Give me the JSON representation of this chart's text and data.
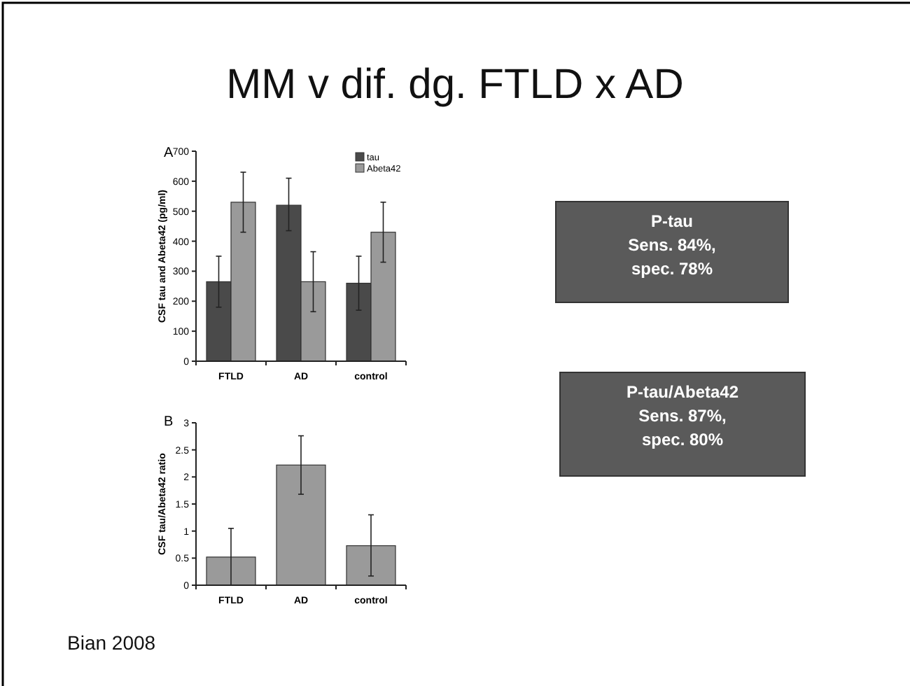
{
  "chart_data": [
    {
      "type": "bar",
      "title": "MM v dif. dg. FTLD x AD",
      "ylabel": "CSF tau and Abeta42 (pg/ml)",
      "categories": [
        "FTLD",
        "AD",
        "control"
      ],
      "series": [
        {
          "name": "tau",
          "color": "#4a4a4a",
          "values": [
            265,
            520,
            260
          ],
          "errors": [
            [
              180,
              350
            ],
            [
              435,
              610
            ],
            [
              170,
              350
            ]
          ]
        },
        {
          "name": "Abeta42",
          "color": "#9a9a9a",
          "values": [
            530,
            265,
            430
          ],
          "errors": [
            [
              430,
              630
            ],
            [
              165,
              365
            ],
            [
              330,
              530
            ]
          ]
        }
      ],
      "ylim": [
        0,
        700
      ],
      "yticks": [
        0,
        100,
        200,
        300,
        400,
        500,
        600,
        700
      ],
      "grid": false,
      "legend": "top right",
      "annotations": [
        "A",
        "P-tau\nSens. 84%,\nspec. 78%",
        "P-tau/Abeta42\nSens. 87%,\nspec. 80%"
      ]
    },
    {
      "type": "bar",
      "ylabel": "CSF tau/Abeta42 ratio",
      "categories": [
        "FTLD",
        "AD",
        "control"
      ],
      "series": [
        {
          "color": "#9a9a9a",
          "values": [
            0.52,
            2.22,
            0.73
          ],
          "errors": [
            [
              0,
              1.05
            ],
            [
              1.68,
              2.76
            ],
            [
              0.17,
              1.3
            ]
          ]
        }
      ],
      "ylim": [
        0,
        3
      ],
      "yticks": [
        0,
        0.5,
        1,
        1.5,
        2,
        2.5,
        3
      ],
      "grid": false,
      "legend": false,
      "annotations": [
        "B",
        "Bian 2008"
      ]
    }
  ]
}
